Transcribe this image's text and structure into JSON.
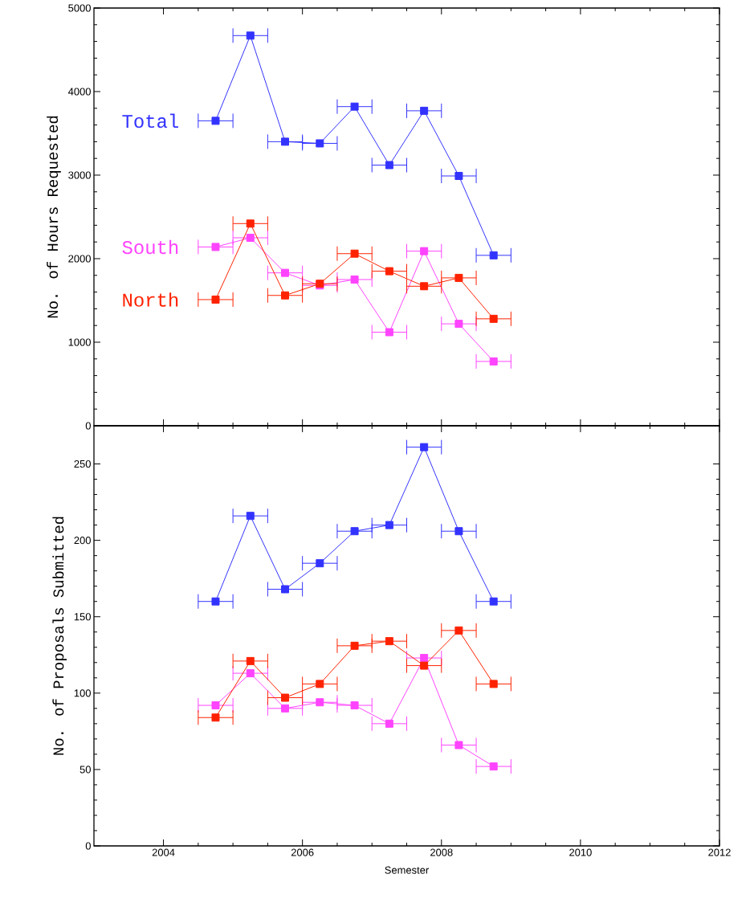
{
  "chart_data": [
    {
      "type": "line",
      "ylabel": "No. of Hours Requested",
      "marker": "square",
      "tick_labels": "y",
      "x": [
        2004.75,
        2005.25,
        2005.75,
        2006.25,
        2006.75,
        2007.25,
        2007.75,
        2008.25,
        2008.75
      ],
      "xlim": [
        2003,
        2012
      ],
      "xticks": [
        2004,
        2006,
        2008,
        2010,
        2012
      ],
      "ylim": [
        0,
        5000
      ],
      "yticks": [
        0,
        1000,
        2000,
        3000,
        4000,
        5000
      ],
      "series": [
        {
          "name": "Total",
          "color": "#3333ff",
          "values": [
            3650,
            4670,
            3400,
            3380,
            3820,
            3120,
            3770,
            2990,
            2040
          ],
          "xerrors": [
            0.25,
            0.25,
            0.25,
            0.25,
            0.25,
            0.25,
            0.25,
            0.25,
            0.25
          ]
        },
        {
          "name": "South",
          "color": "#ff44ff",
          "values": [
            2140,
            2250,
            1830,
            1680,
            1750,
            1120,
            2090,
            1220,
            770
          ],
          "xerrors": [
            0.25,
            0.25,
            0.25,
            0.25,
            0.25,
            0.25,
            0.25,
            0.25,
            0.25
          ]
        },
        {
          "name": "North",
          "color": "#ff2200",
          "values": [
            1510,
            2420,
            1560,
            1700,
            2060,
            1850,
            1670,
            1770,
            1280
          ],
          "xerrors": [
            0.25,
            0.25,
            0.25,
            0.25,
            0.25,
            0.25,
            0.25,
            0.25,
            0.25
          ]
        }
      ]
    },
    {
      "type": "line",
      "xlabel": "Semester",
      "ylabel": "No. of Proposals Submitted",
      "marker": "square",
      "x": [
        2004.75,
        2005.25,
        2005.75,
        2006.25,
        2006.75,
        2007.25,
        2007.75,
        2008.25,
        2008.75
      ],
      "xlim": [
        2003,
        2012
      ],
      "xticks": [
        2004,
        2006,
        2008,
        2010,
        2012
      ],
      "ylim": [
        0,
        275
      ],
      "yticks": [
        0,
        50,
        100,
        150,
        200,
        250
      ],
      "series": [
        {
          "color": "#3333ff",
          "values": [
            160,
            216,
            168,
            185,
            206,
            210,
            261,
            206,
            160
          ],
          "xerrors": [
            0.25,
            0.25,
            0.25,
            0.25,
            0.25,
            0.25,
            0.25,
            0.25,
            0.25
          ]
        },
        {
          "color": "#ff44ff",
          "values": [
            92,
            113,
            90,
            94,
            92,
            80,
            123,
            66,
            52
          ],
          "xerrors": [
            0.25,
            0.25,
            0.25,
            0.25,
            0.25,
            0.25,
            0.25,
            0.25,
            0.25
          ]
        },
        {
          "color": "#ff2200",
          "values": [
            84,
            121,
            97,
            106,
            131,
            134,
            118,
            141,
            106
          ],
          "xerrors": [
            0.25,
            0.25,
            0.25,
            0.25,
            0.25,
            0.25,
            0.25,
            0.25,
            0.25
          ]
        }
      ]
    }
  ]
}
